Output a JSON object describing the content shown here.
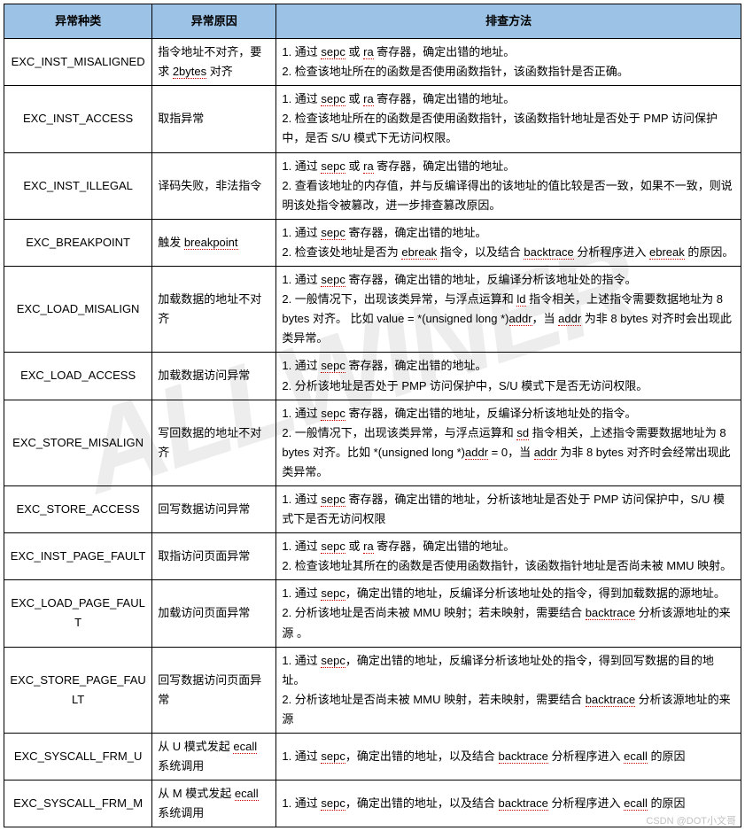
{
  "headers": {
    "type": "异常种类",
    "reason": "异常原因",
    "method": "排查方法"
  },
  "col_widths": {
    "type": 167,
    "reason": 140,
    "method": 524
  },
  "header_bg": "#9cc2e5",
  "border_color": "#000000",
  "rows": [
    {
      "type": "EXC_INST_MISALIGNED",
      "reason": "指令地址不对齐，要求 2bytes 对齐",
      "method": "1. 通过 sepc 或 ra 寄存器，确定出错的地址。\n2. 检查该地址所在的函数是否使用函数指针，该函数指针是否正确。"
    },
    {
      "type": "EXC_INST_ACCESS",
      "reason": "取指异常",
      "method": "1. 通过 sepc 或 ra 寄存器，确定出错的地址。\n2. 检查该地址所在的函数是否使用函数指针，该函数指针地址是否处于 PMP 访问保护中，是否 S/U 模式下无访问权限。"
    },
    {
      "type": "EXC_INST_ILLEGAL",
      "reason": "译码失败，非法指令",
      "method": "1. 通过 sepc 或 ra 寄存器，确定出错的地址。\n2. 查看该地址的内存值，并与反编译得出的该地址的值比较是否一致，如果不一致，则说明该处指令被篡改，进一步排查篡改原因。"
    },
    {
      "type": "EXC_BREAKPOINT",
      "reason": "触发 breakpoint",
      "method": "1. 通过 sepc 寄存器，确定出错的地址。\n2. 检查该处地址是否为 ebreak 指令，以及结合 backtrace 分析程序进入 ebreak 的原因。"
    },
    {
      "type": "EXC_LOAD_MISALIGN",
      "reason": "加载数据的地址不对齐",
      "method": "1. 通过 sepc 寄存器，确定出错的地址，反编译分析该地址处的指令。\n2. 一般情况下，出现该类异常，与浮点运算和 ld 指令相关，上述指令需要数据地址为 8 bytes 对齐。 比如 value = *(unsigned long *)addr，当 addr 为非 8 bytes 对齐时会出现此类异常。"
    },
    {
      "type": "EXC_LOAD_ACCESS",
      "reason": "加载数据访问异常",
      "method": "1. 通过 sepc 寄存器，确定出错的地址。\n2. 分析该地址是否处于 PMP 访问保护中，S/U 模式下是否无访问权限。"
    },
    {
      "type": "EXC_STORE_MISALIGN",
      "reason": "写回数据的地址不对齐",
      "method": "1. 通过 sepc 寄存器，确定出错的地址，反编译分析该地址处的指令。\n2. 一般情况下，出现该类异常，与浮点运算和 sd 指令相关，上述指令需要数据地址为 8 bytes 对齐。比如 *(unsigned long *)addr = 0，当 addr 为非 8 bytes 对齐时会经常出现此类异常。"
    },
    {
      "type": "EXC_STORE_ACCESS",
      "reason": "回写数据访问异常",
      "method": "1. 通过 sepc 寄存器，确定出错的地址，分析该地址是否处于 PMP 访问保护中，S/U 模式下是否无访问权限"
    },
    {
      "type": "EXC_INST_PAGE_FAULT",
      "reason": "取指访问页面异常",
      "method": "1. 通过 sepc 或 ra 寄存器，确定出错的地址。\n2. 检查该地址其所在的函数是否使用函数指针，该函数指针地址是否尚未被 MMU 映射。"
    },
    {
      "type": "EXC_LOAD_PAGE_FAULT",
      "reason": "加载访问页面异常",
      "method": "1. 通过 sepc，确定出错的地址，反编译分析该地址处的指令，得到加载数据的源地址。\n2. 分析该地址是否尚未被 MMU 映射；若未映射，需要结合 backtrace 分析该源地址的来源 。"
    },
    {
      "type": "EXC_STORE_PAGE_FAULT",
      "reason": "回写数据访问页面异常",
      "method": "1. 通过 sepc，确定出错的地址，反编译分析该地址处的指令，得到回写数据的目的地址。\n2. 分析该地址是否尚未被 MMU 映射，若未映射，需要结合 backtrace 分析该源地址的来源"
    },
    {
      "type": "EXC_SYSCALL_FRM_U",
      "reason": "从 U 模式发起 ecall 系统调用",
      "method": "1. 通过 sepc，确定出错的地址，以及结合 backtrace 分析程序进入 ecall 的原因"
    },
    {
      "type": "EXC_SYSCALL_FRM_M",
      "reason": "从 M 模式发起 ecall 系统调用",
      "method": "1. 通过 sepc，确定出错的地址，以及结合 backtrace 分析程序进入 ecall 的原因"
    }
  ],
  "underline_tokens": [
    "sepc",
    "ra",
    "ebreak",
    "backtrace",
    "ld",
    "sd",
    "addr",
    "ecall",
    "breakpoint",
    "2bytes"
  ],
  "watermark_text": "ALLWINER",
  "footer_text": "CSDN @DOT小文哥"
}
